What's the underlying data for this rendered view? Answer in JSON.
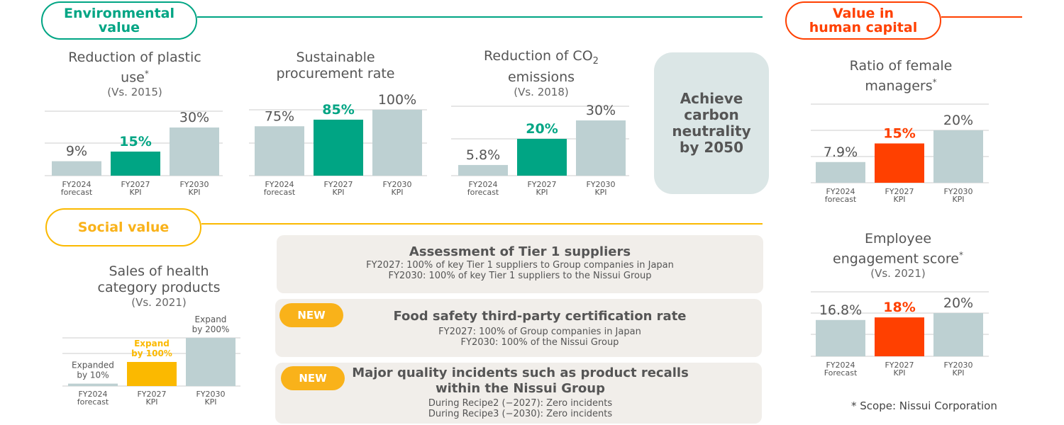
{
  "colors": {
    "green": "#00a584",
    "orange": "#ff4000",
    "yellow": "#fbb900",
    "gray": "#bdd0d2",
    "axis": "#cccccc"
  },
  "sections": {
    "environmental": "Environmental\nvalue",
    "human": "Value in\nhuman capital",
    "social": "Social value"
  },
  "carbon_box": "Achieve\ncarbon\nneutrality\nby 2050",
  "titles": {
    "plastic": {
      "line1": "Reduction of plastic",
      "line2": "use",
      "mark": "*",
      "sub": "(Vs. 2015)"
    },
    "procurement": {
      "line1": "Sustainable",
      "line2": "procurement rate"
    },
    "co2": {
      "line1a": "Reduction of CO",
      "sub2": "2",
      "line2": "emissions",
      "sub": "(Vs. 2018)"
    },
    "female": {
      "line1": "Ratio of female",
      "line2": "managers",
      "mark": "*"
    },
    "engagement": {
      "line1": "Employee",
      "line2": "engagement score",
      "mark": "*",
      "sub": "(Vs. 2021)"
    },
    "health": {
      "line1": "Sales of health",
      "line2": "category products",
      "sub": "(Vs. 2021)"
    }
  },
  "cards": [
    {
      "title": "Assessment of Tier 1 suppliers",
      "lines": [
        "FY2027: 100% of key Tier 1 suppliers to Group companies in Japan",
        "FY2030: 100% of key Tier 1 suppliers to the Nissui Group"
      ]
    },
    {
      "badge": "NEW",
      "title": "Food safety third-party certification rate",
      "lines": [
        "FY2027: 100% of Group companies in Japan",
        "FY2030: 100% of the Nissui Group"
      ]
    },
    {
      "badge": "NEW",
      "title": "Major quality incidents such as product recalls\nwithin the Nissui Group",
      "lines": [
        "During Recipe2 (−2027): Zero incidents",
        "During Recipe3 (−2030): Zero incidents"
      ]
    }
  ],
  "footnote": "* Scope: Nissui Corporation",
  "chart_data": [
    {
      "id": "plastic",
      "type": "bar",
      "unit": "%",
      "highlight": "green",
      "categories": [
        "FY2024\nforecast",
        "FY2027\nKPI",
        "FY2030\nKPI"
      ],
      "values": [
        9,
        15,
        30
      ],
      "labels": [
        "9%",
        "15%",
        "30%"
      ]
    },
    {
      "id": "procurement",
      "type": "bar",
      "unit": "%",
      "highlight": "green",
      "categories": [
        "FY2024\nforecast",
        "FY2027\nKPI",
        "FY2030\nKPI"
      ],
      "values": [
        75,
        85,
        100
      ],
      "labels": [
        "75%",
        "85%",
        "100%"
      ]
    },
    {
      "id": "co2",
      "type": "bar",
      "unit": "%",
      "highlight": "green",
      "categories": [
        "FY2024\nforecast",
        "FY2027\nKPI",
        "FY2030\nKPI"
      ],
      "values": [
        5.8,
        20,
        30
      ],
      "labels": [
        "5.8%",
        "20%",
        "30%"
      ]
    },
    {
      "id": "female",
      "type": "bar",
      "unit": "%",
      "highlight": "orange",
      "categories": [
        "FY2024\nforecast",
        "FY2027\nKPI",
        "FY2030\nKPI"
      ],
      "values": [
        7.9,
        15,
        20
      ],
      "labels": [
        "7.9%",
        "15%",
        "20%"
      ]
    },
    {
      "id": "engagement",
      "type": "bar",
      "unit": "%",
      "highlight": "orange",
      "categories": [
        "FY2024\nForecast",
        "FY2027\nKPI",
        "FY2030\nKPI"
      ],
      "values": [
        16.8,
        18,
        20
      ],
      "labels": [
        "16.8%",
        "18%",
        "20%"
      ]
    },
    {
      "id": "health",
      "type": "bar",
      "unit": "%",
      "highlight": "yellow",
      "categories": [
        "FY2024\nforecast",
        "FY2027\nKPI",
        "FY2030\nKPI"
      ],
      "values": [
        10,
        100,
        200
      ],
      "labels": [
        "Expanded\nby 10%",
        "Expand\nby 100%",
        "Expand\nby 200%"
      ]
    }
  ]
}
